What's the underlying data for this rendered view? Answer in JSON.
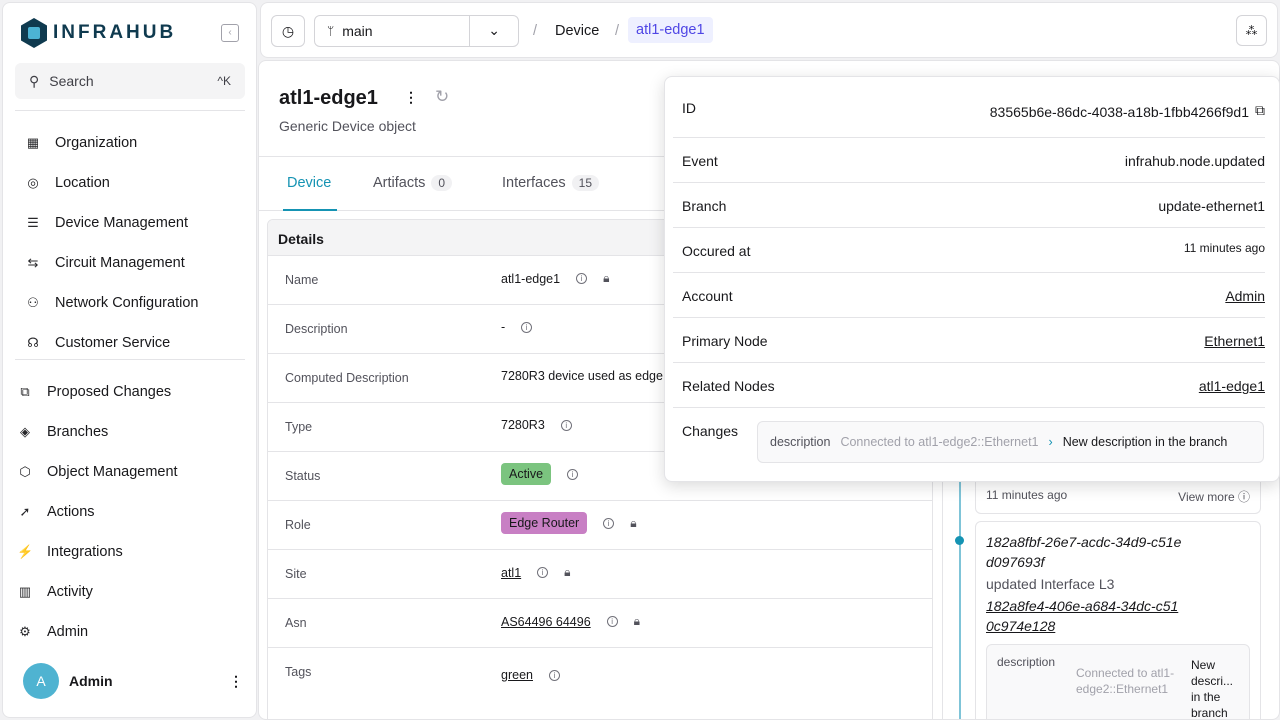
{
  "app": {
    "name": "INFRAHUB"
  },
  "sidebar": {
    "search": "Search",
    "shortcut": "^K",
    "groups1": [
      {
        "label": "Organization",
        "icon": "building-icon"
      },
      {
        "label": "Location",
        "icon": "location-pin-icon"
      },
      {
        "label": "Device Management",
        "icon": "server-icon"
      },
      {
        "label": "Circuit Management",
        "icon": "circuit-icon"
      },
      {
        "label": "Network Configuration",
        "icon": "network-icon"
      },
      {
        "label": "Customer Service",
        "icon": "customer-service-icon"
      }
    ],
    "groups2": [
      {
        "label": "Proposed Changes",
        "icon": "proposed-changes-icon"
      },
      {
        "label": "Branches",
        "icon": "layers-icon"
      },
      {
        "label": "Object Management",
        "icon": "cube-icon"
      },
      {
        "label": "Actions",
        "icon": "rocket-icon"
      },
      {
        "label": "Integrations",
        "icon": "plug-icon"
      },
      {
        "label": "Activity",
        "icon": "chart-icon"
      },
      {
        "label": "Admin",
        "icon": "gear-icon"
      }
    ],
    "user": {
      "initial": "A",
      "name": "Admin"
    }
  },
  "topbar": {
    "branch": "main",
    "breadcrumb": [
      "Device",
      "atl1-edge1"
    ]
  },
  "object": {
    "title": "atl1-edge1",
    "subtitle": "Generic Device object",
    "tabs": [
      {
        "label": "Device"
      },
      {
        "label": "Artifacts",
        "count": "0"
      },
      {
        "label": "Interfaces",
        "count": "15"
      }
    ],
    "details_title": "Details",
    "rows": [
      {
        "label": "Name",
        "value": "atl1-edge1"
      },
      {
        "label": "Description",
        "value": "-"
      },
      {
        "label": "Computed Description",
        "value": "7280R3 device used as edge"
      },
      {
        "label": "Type",
        "value": "7280R3"
      },
      {
        "label": "Status",
        "value": "Active",
        "color": "#7bc47f"
      },
      {
        "label": "Role",
        "value": "Edge Router",
        "color": "#c87fc4"
      },
      {
        "label": "Site",
        "value": "atl1"
      },
      {
        "label": "Asn",
        "value": "AS64496 64496"
      },
      {
        "label": "Tags",
        "value": "green"
      }
    ]
  },
  "popover": {
    "rows": [
      {
        "label": "ID",
        "value": "83565b6e-86dc-4038-a18b-1fbb4266f9d1"
      },
      {
        "label": "Event",
        "value": "infrahub.node.updated"
      },
      {
        "label": "Branch",
        "value": "update-ethernet1"
      },
      {
        "label": "Occured at",
        "value": "11 minutes ago"
      },
      {
        "label": "Account",
        "value": "Admin"
      },
      {
        "label": "Primary Node",
        "value": "Ethernet1"
      },
      {
        "label": "Related Nodes",
        "value": "atl1-edge1"
      }
    ],
    "changes_label": "Changes",
    "change": {
      "attr": "description",
      "old": "Connected to atl1-edge2::Ethernet1",
      "new": "New description in the branch"
    }
  },
  "timeline": {
    "time": "11 minutes ago",
    "view_more": "View more",
    "event": {
      "id": "182a8fbf-26e7-acdc-34d9-c51ed097693f",
      "action": "updated Interface L3",
      "node": "182a8fe4-406e-a684-34dc-c510c974e128",
      "attr": "description",
      "old": "Connected to atl1-edge2::Ethernet1",
      "new": "New descri... in the branch"
    }
  }
}
